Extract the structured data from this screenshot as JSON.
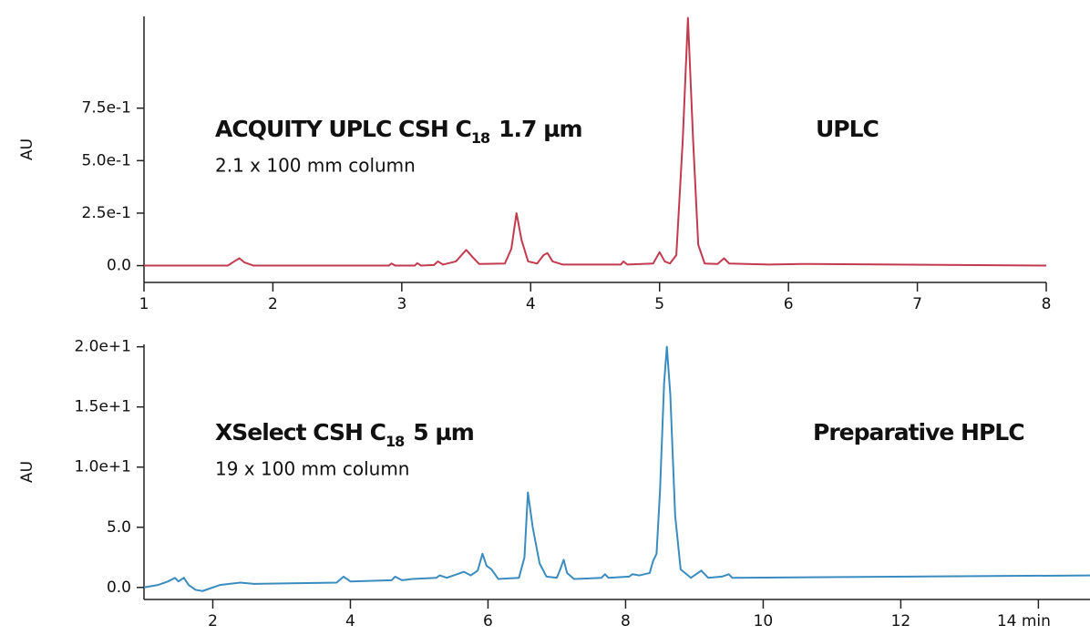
{
  "chart_data": [
    {
      "type": "line",
      "y_label": "AU",
      "annotations": [
        {
          "text": "ACQUITY UPLC CSH C",
          "subscript": "18",
          "suffix": "1.7 µm"
        },
        {
          "text": "2.1 x 100 mm column"
        },
        {
          "text": "UPLC"
        }
      ],
      "xlim": [
        1,
        8
      ],
      "xticks": [
        1,
        2,
        3,
        4,
        5,
        6,
        7,
        8
      ],
      "ylim": [
        -0.08,
        1.2
      ],
      "yticks": [
        {
          "value": 0,
          "label": "0.0"
        },
        {
          "value": 0.25,
          "label": "2.5e-1"
        },
        {
          "value": 0.5,
          "label": "5.0e-1"
        },
        {
          "value": 0.75,
          "label": "7.5e-1"
        }
      ],
      "x": [
        1.0,
        1.65,
        1.7,
        1.74,
        1.78,
        1.85,
        2.9,
        2.92,
        2.95,
        3.1,
        3.12,
        3.15,
        3.25,
        3.28,
        3.32,
        3.42,
        3.5,
        3.55,
        3.6,
        3.8,
        3.85,
        3.89,
        3.93,
        3.98,
        4.05,
        4.1,
        4.13,
        4.17,
        4.25,
        4.7,
        4.72,
        4.75,
        4.95,
        5.0,
        5.04,
        5.08,
        5.13,
        5.18,
        5.22,
        5.26,
        5.3,
        5.35,
        5.45,
        5.5,
        5.54,
        5.85,
        6.1,
        8.0
      ],
      "series": [
        {
          "color": "#c23a4e",
          "values": [
            0,
            0,
            0.02,
            0.035,
            0.015,
            0,
            0,
            0.01,
            0,
            0,
            0.012,
            0,
            0.003,
            0.02,
            0.005,
            0.02,
            0.075,
            0.04,
            0.008,
            0.01,
            0.08,
            0.25,
            0.12,
            0.02,
            0.01,
            0.05,
            0.06,
            0.02,
            0.005,
            0.005,
            0.02,
            0.005,
            0.01,
            0.064,
            0.02,
            0.01,
            0.05,
            0.6,
            1.18,
            0.6,
            0.1,
            0.01,
            0.008,
            0.035,
            0.01,
            0.005,
            0.008,
            0
          ]
        }
      ]
    },
    {
      "type": "line",
      "y_label": "AU",
      "annotations": [
        {
          "text": "XSelect CSH C",
          "subscript": "18",
          "suffix": "5 µm"
        },
        {
          "text": "19 x 100 mm column"
        },
        {
          "text": "Preparative HPLC"
        }
      ],
      "xlim": [
        1,
        14.75
      ],
      "xticks": [
        2,
        4,
        6,
        8,
        10,
        12,
        {
          "value": 14,
          "label": "14 min"
        }
      ],
      "ylim": [
        -1,
        20.2
      ],
      "yticks": [
        {
          "value": 0,
          "label": "0.0"
        },
        {
          "value": 5,
          "label": "5.0"
        },
        {
          "value": 10,
          "label": "1.0e+1"
        },
        {
          "value": 15,
          "label": "1.5e+1"
        },
        {
          "value": 20,
          "label": "2.0e+1"
        }
      ],
      "x": [
        1.0,
        1.2,
        1.35,
        1.45,
        1.5,
        1.58,
        1.65,
        1.75,
        1.85,
        2.1,
        2.4,
        2.6,
        3.8,
        3.9,
        4.0,
        4.6,
        4.65,
        4.75,
        4.9,
        5.25,
        5.3,
        5.4,
        5.55,
        5.65,
        5.75,
        5.85,
        5.92,
        5.98,
        6.05,
        6.15,
        6.45,
        6.53,
        6.58,
        6.65,
        6.75,
        6.85,
        7.0,
        7.05,
        7.1,
        7.15,
        7.25,
        7.65,
        7.7,
        7.75,
        8.05,
        8.1,
        8.2,
        8.35,
        8.4,
        8.45,
        8.5,
        8.56,
        8.6,
        8.65,
        8.72,
        8.8,
        8.95,
        9.1,
        9.2,
        9.4,
        9.5,
        9.55,
        14.75
      ],
      "series": [
        {
          "color": "#3a8cc0",
          "values": [
            0.0,
            0.2,
            0.5,
            0.8,
            0.5,
            0.8,
            0.2,
            -0.2,
            -0.3,
            0.2,
            0.4,
            0.3,
            0.4,
            0.9,
            0.5,
            0.6,
            0.9,
            0.6,
            0.7,
            0.8,
            1.0,
            0.8,
            1.1,
            1.3,
            1.0,
            1.4,
            2.8,
            1.8,
            1.5,
            0.7,
            0.8,
            2.5,
            7.9,
            5.0,
            2.0,
            0.9,
            0.8,
            1.5,
            2.3,
            1.2,
            0.7,
            0.8,
            1.1,
            0.8,
            0.9,
            1.1,
            1.0,
            1.2,
            2.2,
            2.8,
            8.0,
            17.0,
            20.0,
            16.0,
            6.0,
            1.5,
            0.8,
            1.4,
            0.8,
            0.9,
            1.1,
            0.8,
            1.0
          ]
        }
      ]
    }
  ]
}
